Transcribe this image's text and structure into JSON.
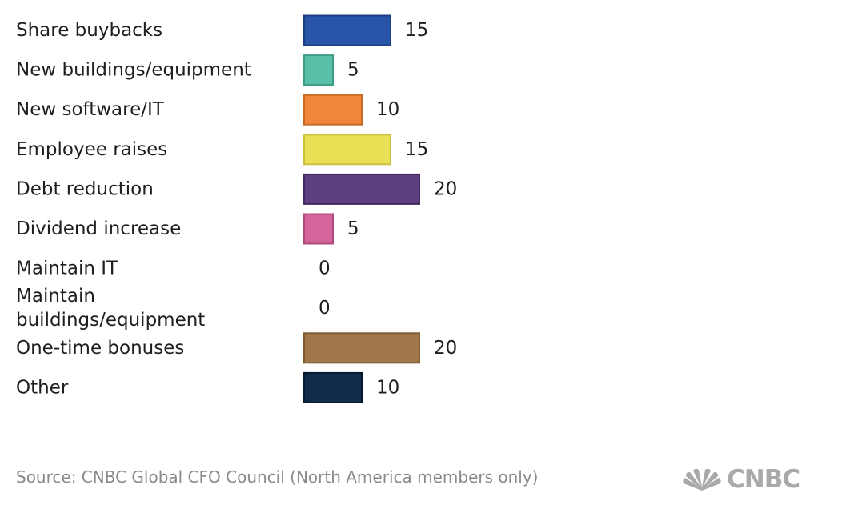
{
  "chart_data": {
    "type": "bar",
    "orientation": "horizontal",
    "categories": [
      "Share buybacks",
      "New buildings/equipment",
      "New software/IT",
      "Employee raises",
      "Debt reduction",
      "Dividend increase",
      "Maintain IT",
      "Maintain buildings/equipment",
      "One-time bonuses",
      "Other"
    ],
    "category_lines": [
      [
        "Share buybacks"
      ],
      [
        "New buildings/equipment"
      ],
      [
        "New software/IT"
      ],
      [
        "Employee raises"
      ],
      [
        "Debt reduction"
      ],
      [
        "Dividend increase"
      ],
      [
        "Maintain IT"
      ],
      [
        "Maintain",
        "buildings/equipment"
      ],
      [
        "One-time bonuses"
      ],
      [
        "Other"
      ]
    ],
    "values": [
      15,
      5,
      10,
      15,
      20,
      5,
      0,
      0,
      20,
      10
    ],
    "value_labels": [
      "15",
      "5",
      "10",
      "15",
      "20",
      "5",
      "0",
      "0",
      "20",
      "10"
    ],
    "colors": [
      "#2855a8",
      "#57c0a6",
      "#f0873a",
      "#e9e055",
      "#5e3f80",
      "#d4649a",
      "#999999",
      "#999999",
      "#a07749",
      "#112b4b"
    ],
    "stroke_colors": [
      "#1b3e85",
      "#3d9c85",
      "#c86a24",
      "#c9c03e",
      "#432a60",
      "#b04a7c",
      "#777777",
      "#777777",
      "#7e5a33",
      "#061a30"
    ],
    "xlim": [
      0,
      20
    ],
    "legend": "none",
    "grid": false
  },
  "footer": {
    "source": "Source: CNBC Global CFO Council (North America members only)",
    "logo_text": "CNBC"
  }
}
